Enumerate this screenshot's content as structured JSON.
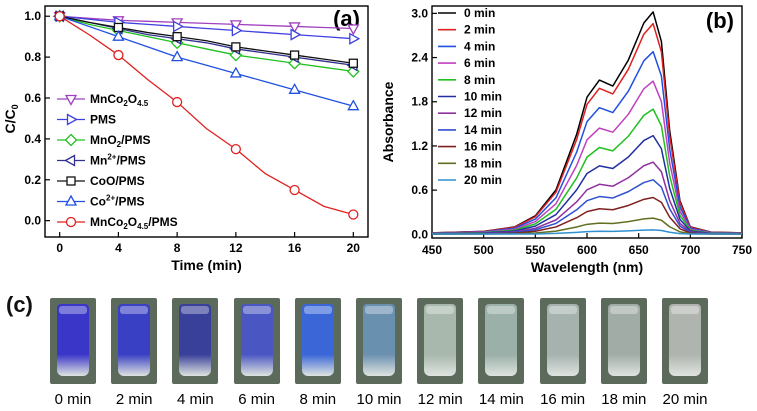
{
  "chart_data": [
    {
      "panel_label": "(a)",
      "type": "line",
      "xlabel": "Time (min)",
      "ylabel": "C/C",
      "ylabel_sub": "0",
      "xlim": [
        -1,
        21
      ],
      "ylim": [
        -0.08,
        1.05
      ],
      "x_ticks": [
        0,
        4,
        8,
        12,
        16,
        20
      ],
      "y_ticks": [
        0.0,
        0.2,
        0.4,
        0.6,
        0.8,
        1.0
      ],
      "x_tick_labels": [
        "0",
        "4",
        "8",
        "12",
        "16",
        "20"
      ],
      "y_tick_labels": [
        "0.0",
        "0.2",
        "0.4",
        "0.6",
        "0.8",
        "1.0"
      ],
      "x": [
        0,
        2,
        4,
        6,
        8,
        10,
        12,
        14,
        16,
        18,
        20
      ],
      "series": [
        {
          "name": "MnCo2O4.5",
          "label_main": "MnCo",
          "label_sub1": "2",
          "label_mid": "O",
          "label_sub2": "4.5",
          "label_tail": "",
          "color": "#a040c0",
          "marker": "triangle-down",
          "values": [
            1.0,
            0.99,
            0.98,
            0.975,
            0.97,
            0.965,
            0.96,
            0.955,
            0.95,
            0.945,
            0.94
          ]
        },
        {
          "name": "PMS",
          "label_main": "PMS",
          "label_sub1": "",
          "label_mid": "",
          "label_sub2": "",
          "label_tail": "",
          "color": "#4040e0",
          "marker": "triangle-right",
          "values": [
            1.0,
            0.985,
            0.97,
            0.96,
            0.95,
            0.94,
            0.93,
            0.92,
            0.91,
            0.9,
            0.89
          ]
        },
        {
          "name": "MnO2/PMS",
          "label_main": "MnO",
          "label_sub1": "2",
          "label_mid": "/PMS",
          "label_sub2": "",
          "label_tail": "",
          "color": "#20c020",
          "marker": "diamond",
          "values": [
            1.0,
            0.96,
            0.93,
            0.9,
            0.87,
            0.84,
            0.81,
            0.79,
            0.77,
            0.75,
            0.73
          ]
        },
        {
          "name": "Mn2+/PMS",
          "label_main": "Mn",
          "label_sub1": "",
          "label_mid": "",
          "label_sub2": "",
          "label_sup": "2+",
          "label_tail": "/PMS",
          "color": "#303090",
          "marker": "triangle-left",
          "values": [
            1.0,
            0.97,
            0.94,
            0.91,
            0.89,
            0.87,
            0.84,
            0.82,
            0.8,
            0.78,
            0.76
          ]
        },
        {
          "name": "CoO/PMS",
          "label_main": "CoO/PMS",
          "label_sub1": "",
          "label_mid": "",
          "label_sub2": "",
          "label_tail": "",
          "color": "#111111",
          "marker": "square",
          "values": [
            1.0,
            0.97,
            0.945,
            0.92,
            0.9,
            0.88,
            0.85,
            0.83,
            0.81,
            0.79,
            0.77
          ]
        },
        {
          "name": "Co2+/PMS",
          "label_main": "Co",
          "label_sub1": "",
          "label_mid": "",
          "label_sub2": "",
          "label_sup": "2+",
          "label_tail": "/PMS",
          "color": "#2050e0",
          "marker": "triangle-up",
          "values": [
            1.0,
            0.95,
            0.9,
            0.85,
            0.8,
            0.76,
            0.72,
            0.68,
            0.64,
            0.6,
            0.56
          ]
        },
        {
          "name": "MnCo2O4.5/PMS",
          "label_main": "MnCo",
          "label_sub1": "2",
          "label_mid": "O",
          "label_sub2": "4.5",
          "label_tail": "/PMS",
          "color": "#e02020",
          "marker": "circle",
          "values": [
            1.0,
            0.91,
            0.81,
            0.69,
            0.58,
            0.45,
            0.35,
            0.23,
            0.15,
            0.07,
            0.03
          ]
        }
      ]
    },
    {
      "panel_label": "(b)",
      "type": "line",
      "xlabel": "Wavelength (nm)",
      "ylabel": "Absorbance",
      "xlim": [
        450,
        750
      ],
      "ylim": [
        -0.05,
        3.1
      ],
      "x_ticks": [
        450,
        500,
        550,
        600,
        650,
        700,
        750
      ],
      "y_ticks": [
        0.0,
        0.6,
        1.2,
        1.8,
        2.4,
        3.0
      ],
      "x_tick_labels": [
        "450",
        "500",
        "550",
        "600",
        "650",
        "700",
        "750"
      ],
      "y_tick_labels": [
        "0.0",
        "0.6",
        "1.2",
        "1.8",
        "2.4",
        "3.0"
      ],
      "base_shape": {
        "x": [
          450,
          500,
          530,
          550,
          570,
          590,
          600,
          612,
          625,
          640,
          655,
          664,
          672,
          680,
          690,
          700,
          720,
          750
        ],
        "y": [
          0.02,
          0.04,
          0.1,
          0.25,
          0.6,
          1.35,
          1.85,
          2.08,
          2.0,
          2.35,
          2.85,
          3.0,
          2.6,
          1.4,
          0.45,
          0.1,
          0.03,
          0.02
        ]
      },
      "series": [
        {
          "name": "0 min",
          "color": "#000000",
          "peak": 3.02
        },
        {
          "name": "2 min",
          "color": "#e02020",
          "peak": 2.86
        },
        {
          "name": "4 min",
          "color": "#2050e0",
          "peak": 2.48
        },
        {
          "name": "6 min",
          "color": "#c040c0",
          "peak": 2.08
        },
        {
          "name": "8 min",
          "color": "#20c020",
          "peak": 1.7
        },
        {
          "name": "10 min",
          "color": "#2030a0",
          "peak": 1.34
        },
        {
          "name": "12 min",
          "color": "#9030a0",
          "peak": 0.98
        },
        {
          "name": "14 min",
          "color": "#3050d0",
          "peak": 0.74
        },
        {
          "name": "16 min",
          "color": "#802020",
          "peak": 0.5
        },
        {
          "name": "18 min",
          "color": "#607020",
          "peak": 0.22
        },
        {
          "name": "20 min",
          "color": "#3090d0",
          "peak": 0.06
        }
      ]
    }
  ],
  "panel_c": {
    "label": "(c)",
    "vials": [
      {
        "label": "0 min",
        "color": "#3a36c8"
      },
      {
        "label": "2 min",
        "color": "#3a40c4"
      },
      {
        "label": "4 min",
        "color": "#38409a"
      },
      {
        "label": "6 min",
        "color": "#4a56c2"
      },
      {
        "label": "8 min",
        "color": "#3a66d8"
      },
      {
        "label": "10 min",
        "color": "#6a90b0"
      },
      {
        "label": "12 min",
        "color": "#a8b8ac"
      },
      {
        "label": "14 min",
        "color": "#9ab0a8"
      },
      {
        "label": "16 min",
        "color": "#a6b2ae"
      },
      {
        "label": "18 min",
        "color": "#a2aca6"
      },
      {
        "label": "20 min",
        "color": "#b0b4ae"
      }
    ]
  }
}
